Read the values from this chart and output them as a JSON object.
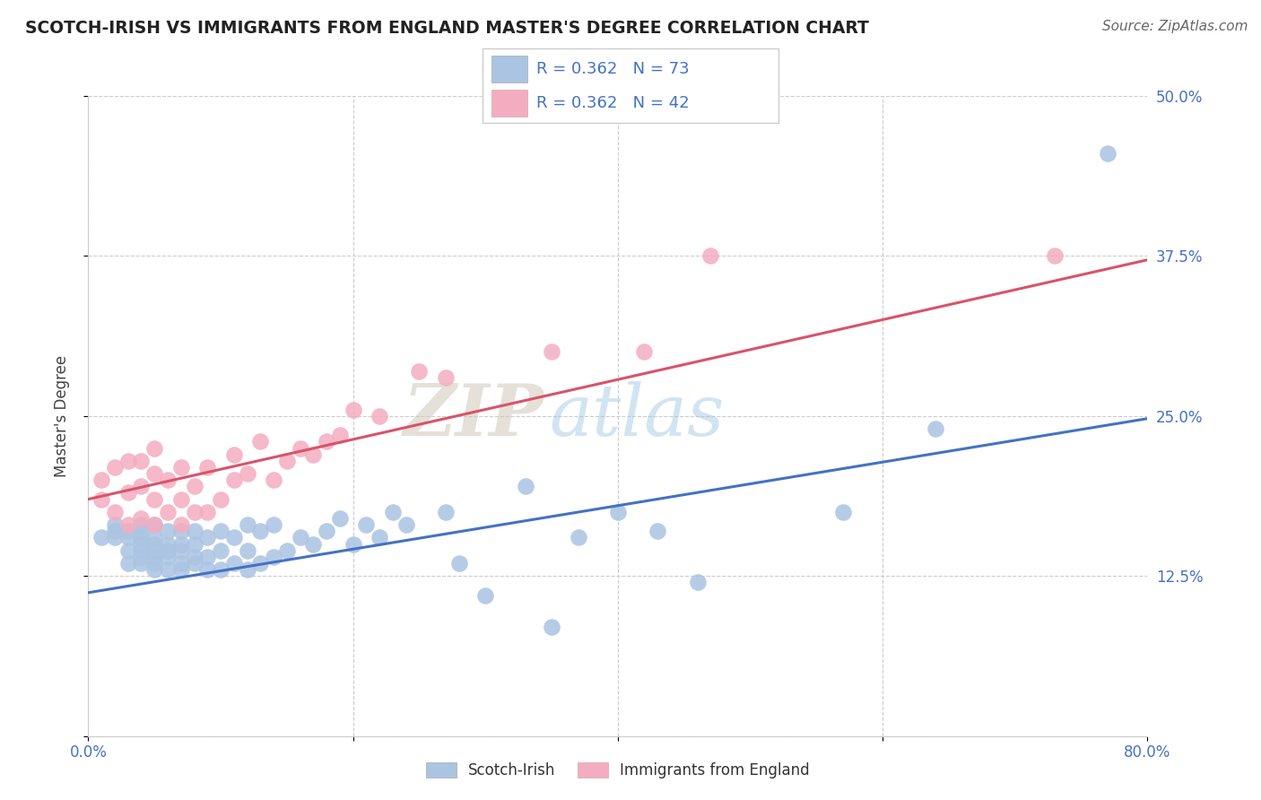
{
  "title": "SCOTCH-IRISH VS IMMIGRANTS FROM ENGLAND MASTER'S DEGREE CORRELATION CHART",
  "source": "Source: ZipAtlas.com",
  "ylabel": "Master's Degree",
  "xlim": [
    0.0,
    0.8
  ],
  "ylim": [
    0.0,
    0.5
  ],
  "xticks": [
    0.0,
    0.2,
    0.4,
    0.6,
    0.8
  ],
  "xticklabels": [
    "0.0%",
    "",
    "",
    "",
    "80.0%"
  ],
  "yticks": [
    0.0,
    0.125,
    0.25,
    0.375,
    0.5
  ],
  "yticklabels": [
    "",
    "12.5%",
    "25.0%",
    "37.5%",
    "50.0%"
  ],
  "blue_R": "R = 0.362",
  "blue_N": "N = 73",
  "pink_R": "R = 0.362",
  "pink_N": "N = 42",
  "blue_color": "#aac4e2",
  "pink_color": "#f4adc0",
  "blue_line_color": "#4472c4",
  "pink_line_color": "#d9536a",
  "watermark_zip": "ZIP",
  "watermark_atlas": "atlas",
  "legend_label_blue": "Scotch-Irish",
  "legend_label_pink": "Immigrants from England",
  "blue_line_y0": 0.112,
  "blue_line_y1": 0.248,
  "pink_line_y0": 0.185,
  "pink_line_y1": 0.372,
  "scotch_irish_x": [
    0.01,
    0.02,
    0.02,
    0.02,
    0.03,
    0.03,
    0.03,
    0.03,
    0.04,
    0.04,
    0.04,
    0.04,
    0.04,
    0.04,
    0.04,
    0.05,
    0.05,
    0.05,
    0.05,
    0.05,
    0.05,
    0.05,
    0.06,
    0.06,
    0.06,
    0.06,
    0.06,
    0.07,
    0.07,
    0.07,
    0.07,
    0.07,
    0.08,
    0.08,
    0.08,
    0.08,
    0.09,
    0.09,
    0.09,
    0.1,
    0.1,
    0.1,
    0.11,
    0.11,
    0.12,
    0.12,
    0.12,
    0.13,
    0.13,
    0.14,
    0.14,
    0.15,
    0.16,
    0.17,
    0.18,
    0.19,
    0.2,
    0.21,
    0.22,
    0.23,
    0.24,
    0.27,
    0.28,
    0.3,
    0.33,
    0.35,
    0.37,
    0.4,
    0.43,
    0.46,
    0.57,
    0.64,
    0.77
  ],
  "scotch_irish_y": [
    0.155,
    0.155,
    0.16,
    0.165,
    0.135,
    0.145,
    0.155,
    0.16,
    0.135,
    0.14,
    0.145,
    0.15,
    0.155,
    0.16,
    0.165,
    0.13,
    0.135,
    0.14,
    0.145,
    0.15,
    0.155,
    0.165,
    0.13,
    0.14,
    0.145,
    0.15,
    0.16,
    0.13,
    0.135,
    0.145,
    0.15,
    0.16,
    0.135,
    0.14,
    0.15,
    0.16,
    0.13,
    0.14,
    0.155,
    0.13,
    0.145,
    0.16,
    0.135,
    0.155,
    0.13,
    0.145,
    0.165,
    0.135,
    0.16,
    0.14,
    0.165,
    0.145,
    0.155,
    0.15,
    0.16,
    0.17,
    0.15,
    0.165,
    0.155,
    0.175,
    0.165,
    0.175,
    0.135,
    0.11,
    0.195,
    0.085,
    0.155,
    0.175,
    0.16,
    0.12,
    0.175,
    0.24,
    0.455
  ],
  "england_x": [
    0.01,
    0.01,
    0.02,
    0.02,
    0.03,
    0.03,
    0.03,
    0.04,
    0.04,
    0.04,
    0.05,
    0.05,
    0.05,
    0.05,
    0.06,
    0.06,
    0.07,
    0.07,
    0.07,
    0.08,
    0.08,
    0.09,
    0.09,
    0.1,
    0.11,
    0.11,
    0.12,
    0.13,
    0.14,
    0.15,
    0.16,
    0.17,
    0.18,
    0.19,
    0.2,
    0.22,
    0.25,
    0.27,
    0.35,
    0.42,
    0.47,
    0.73
  ],
  "england_y": [
    0.185,
    0.2,
    0.175,
    0.21,
    0.165,
    0.19,
    0.215,
    0.17,
    0.195,
    0.215,
    0.165,
    0.185,
    0.205,
    0.225,
    0.175,
    0.2,
    0.165,
    0.185,
    0.21,
    0.175,
    0.195,
    0.175,
    0.21,
    0.185,
    0.2,
    0.22,
    0.205,
    0.23,
    0.2,
    0.215,
    0.225,
    0.22,
    0.23,
    0.235,
    0.255,
    0.25,
    0.285,
    0.28,
    0.3,
    0.3,
    0.375,
    0.375
  ]
}
